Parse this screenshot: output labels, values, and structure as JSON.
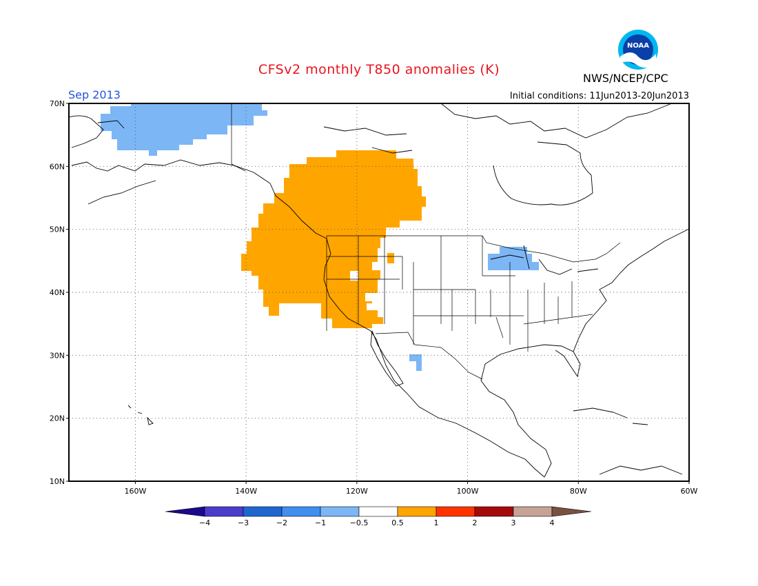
{
  "title": "CFSv2 monthly T850 anomalies (K)",
  "period": "Sep 2013",
  "initial_conditions": "Initial conditions: 11Jun2013-20Jun2013",
  "agency": "NWS/NCEP/CPC",
  "logo_text": "NOAA",
  "map": {
    "lon_range": [
      -172,
      -60
    ],
    "lat_range": [
      10,
      70
    ],
    "grid": true,
    "lat_labels": [
      "70N",
      "60N",
      "50N",
      "40N",
      "30N",
      "20N",
      "10N"
    ],
    "lon_labels": [
      "160W",
      "140W",
      "120W",
      "100W",
      "80W",
      "60W"
    ]
  },
  "legend": {
    "labels": [
      "-4",
      "-3",
      "-2",
      "-1",
      "-0.5",
      "0.5",
      "1",
      "2",
      "3",
      "4"
    ],
    "colors": [
      "#1a0a8c",
      "#4b3ccc",
      "#1f66d1",
      "#3f8ef0",
      "#7cb6f5",
      "#ffffff",
      "#ffa500",
      "#ff3300",
      "#a50a0a",
      "#c6a396",
      "#7a5040"
    ]
  },
  "colors": {
    "warm": "#ffa500",
    "cool": "#7cb6f5",
    "title": "#e8141e",
    "period": "#2255dd"
  }
}
